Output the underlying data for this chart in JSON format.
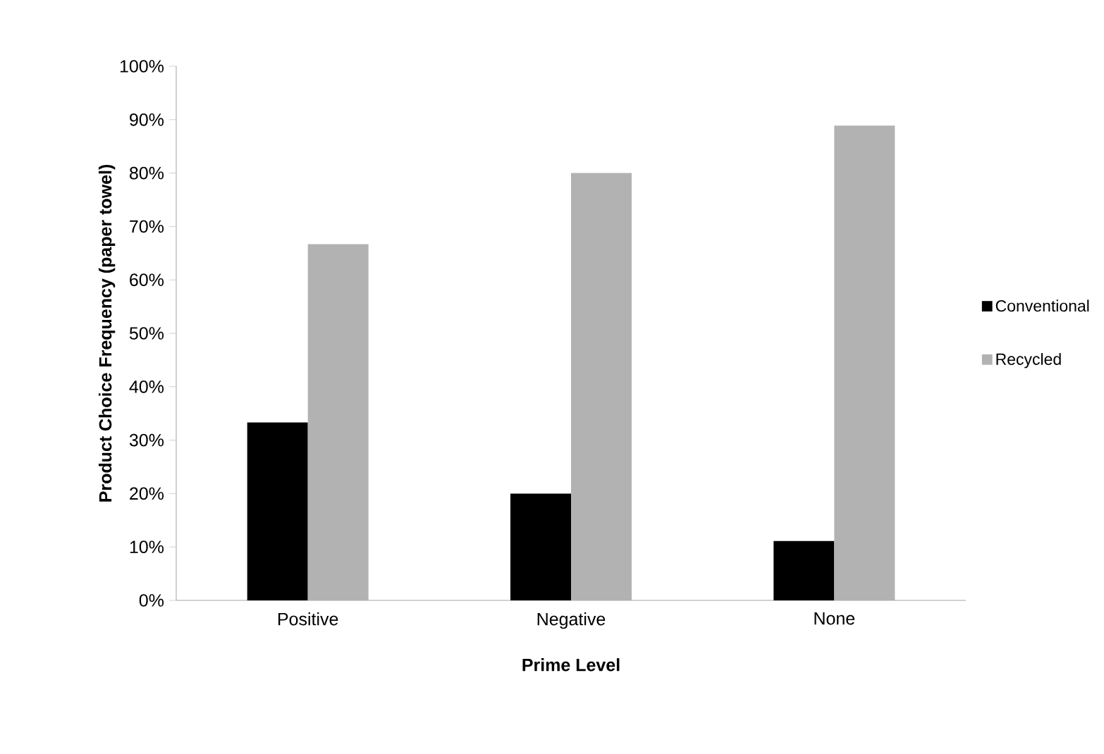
{
  "chart_data": {
    "type": "bar",
    "xlabel": "Prime Level",
    "ylabel": "Product Choice Frequency (paper towel)",
    "categories": [
      "Positive",
      "Negative",
      "None"
    ],
    "series": [
      {
        "name": "Conventional",
        "color": "#000000",
        "values": [
          33.3,
          20.0,
          11.1
        ]
      },
      {
        "name": "Recycled",
        "color": "#b2b2b2",
        "values": [
          66.7,
          80.0,
          88.9
        ]
      }
    ],
    "ylim": [
      0,
      100
    ],
    "yticks": [
      {
        "value": 0,
        "label": "0%"
      },
      {
        "value": 10,
        "label": "10%"
      },
      {
        "value": 20,
        "label": "20%"
      },
      {
        "value": 30,
        "label": "30%"
      },
      {
        "value": 40,
        "label": "40%"
      },
      {
        "value": 50,
        "label": "50%"
      },
      {
        "value": 60,
        "label": "60%"
      },
      {
        "value": 70,
        "label": "70%"
      },
      {
        "value": 80,
        "label": "80%"
      },
      {
        "value": 90,
        "label": "90%"
      },
      {
        "value": 100,
        "label": "100%"
      }
    ],
    "legend": "right"
  }
}
